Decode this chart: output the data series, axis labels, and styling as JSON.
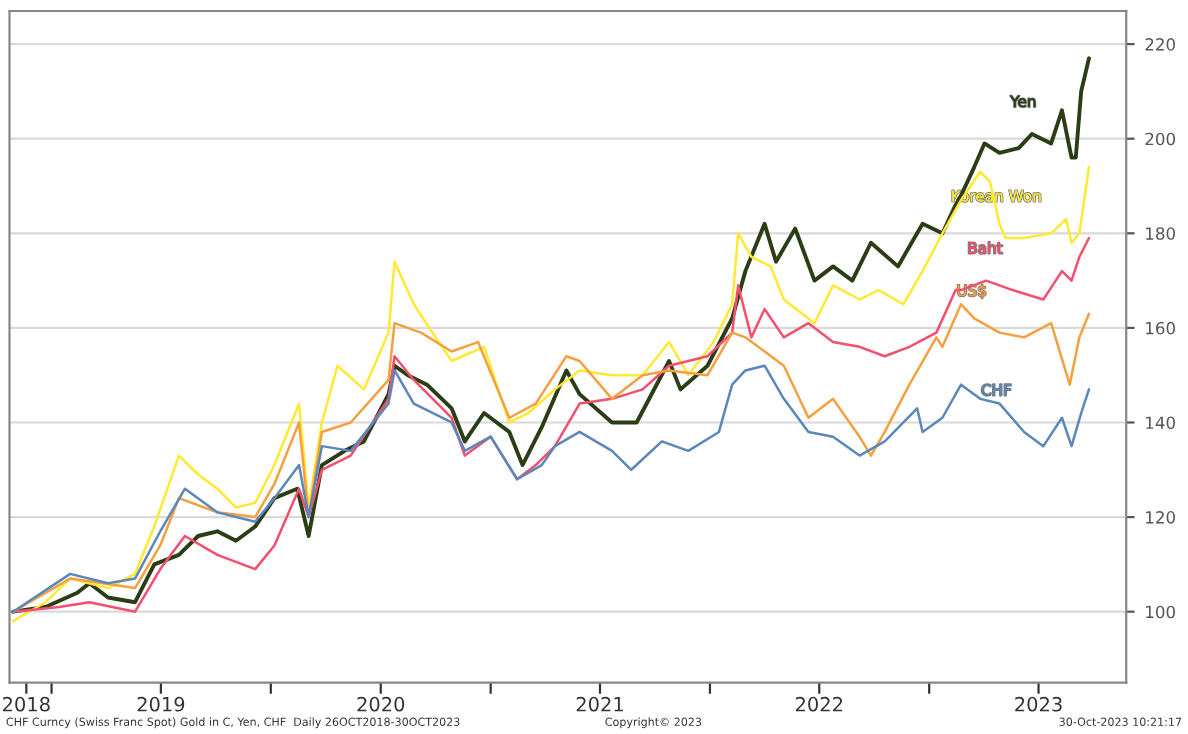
{
  "chart_data": {
    "type": "line",
    "grid": "y",
    "legend": false,
    "marker": "none",
    "line_style": "solid",
    "xlim": [
      "2018-10-23",
      "2023-11-25"
    ],
    "ylim": [
      85,
      227
    ],
    "yticks": [
      100,
      120,
      140,
      160,
      180,
      200,
      220
    ],
    "xticks": [
      {
        "value": "2018-11-20",
        "label": "2018"
      },
      {
        "value": "2019-01-01",
        "label": null
      },
      {
        "value": "2019-07-02",
        "label": "2019"
      },
      {
        "value": "2020-01-01",
        "label": null
      },
      {
        "value": "2020-07-02",
        "label": "2020"
      },
      {
        "value": "2021-01-01",
        "label": null
      },
      {
        "value": "2021-07-02",
        "label": "2021"
      },
      {
        "value": "2022-01-01",
        "label": null
      },
      {
        "value": "2022-07-02",
        "label": "2022"
      },
      {
        "value": "2023-01-01",
        "label": null
      },
      {
        "value": "2023-07-02",
        "label": "2023"
      }
    ],
    "annotations": [
      "CHF Curncy (Swiss Franc Spot) Gold in C, Yen, CHF  Daily 26OCT2018-30OCT2023",
      "Copyright© 2023",
      "30-Oct-2023 10:21:17"
    ],
    "series": [
      {
        "name": "Yen",
        "color": "#2b3d14",
        "x": [
          "2018-10-29",
          "2018-12-22",
          "2019-02-13",
          "2019-03-05",
          "2019-04-05",
          "2019-05-20",
          "2019-06-21",
          "2019-08-01",
          "2019-09-02",
          "2019-10-04",
          "2019-11-04",
          "2019-12-06",
          "2020-01-07",
          "2020-02-14",
          "2020-03-04",
          "2020-03-26",
          "2020-05-03",
          "2020-06-04",
          "2020-07-15",
          "2020-07-25",
          "2020-08-16",
          "2020-09-17",
          "2020-10-28",
          "2020-11-19",
          "2020-12-21",
          "2021-02-01",
          "2021-02-23",
          "2021-03-27",
          "2021-05-07",
          "2021-05-29",
          "2021-07-22",
          "2021-09-01",
          "2021-10-25",
          "2021-11-13",
          "2021-12-28",
          "2022-02-07",
          "2022-03-01",
          "2022-04-02",
          "2022-04-21",
          "2022-05-23",
          "2022-06-24",
          "2022-07-25",
          "2022-08-26",
          "2022-09-26",
          "2022-11-10",
          "2022-12-21",
          "2023-01-23",
          "2023-02-14",
          "2023-02-23",
          "2023-03-17",
          "2023-04-03",
          "2023-04-28",
          "2023-05-30",
          "2023-06-21",
          "2023-07-23",
          "2023-08-10",
          "2023-08-26",
          "2023-09-02",
          "2023-09-11",
          "2023-09-24"
        ],
        "values": [
          100,
          101,
          104,
          106,
          103,
          102,
          110,
          112,
          116,
          117,
          115,
          118,
          124,
          126,
          116,
          131,
          134,
          136,
          146,
          152,
          150,
          148,
          143,
          136,
          142,
          138,
          131,
          139,
          151,
          146,
          140,
          140,
          153,
          147,
          152,
          162,
          172,
          182,
          174,
          181,
          170,
          173,
          170,
          178,
          173,
          182,
          180,
          186,
          188,
          194,
          199,
          197,
          198,
          201,
          199,
          206,
          196,
          196,
          210,
          217
        ]
      },
      {
        "name": "Korean Won",
        "color": "#ffe933",
        "x": [
          "2018-10-29",
          "2018-12-22",
          "2019-02-01",
          "2019-04-05",
          "2019-05-20",
          "2019-06-21",
          "2019-08-01",
          "2019-09-02",
          "2019-10-04",
          "2019-11-04",
          "2019-12-06",
          "2020-01-07",
          "2020-02-17",
          "2020-03-04",
          "2020-03-26",
          "2020-04-21",
          "2020-06-04",
          "2020-07-15",
          "2020-07-25",
          "2020-08-26",
          "2020-09-26",
          "2020-10-28",
          "2020-12-21",
          "2021-02-01",
          "2021-03-05",
          "2021-04-18",
          "2021-05-29",
          "2021-07-22",
          "2021-09-11",
          "2021-10-25",
          "2021-11-26",
          "2022-01-07",
          "2022-02-07",
          "2022-02-17",
          "2022-03-11",
          "2022-04-12",
          "2022-05-04",
          "2022-06-24",
          "2022-07-25",
          "2022-09-07",
          "2022-10-09",
          "2022-11-19",
          "2022-12-21",
          "2023-01-23",
          "2023-02-23",
          "2023-03-27",
          "2023-04-12",
          "2023-04-28",
          "2023-05-08",
          "2023-06-08",
          "2023-07-23",
          "2023-08-17",
          "2023-08-26",
          "2023-09-08",
          "2023-09-24"
        ],
        "values": [
          98,
          102,
          107,
          105,
          108,
          118,
          133,
          129,
          126,
          122,
          123,
          131,
          144,
          122,
          140,
          152,
          147,
          159,
          174,
          165,
          159,
          153,
          156,
          140,
          142,
          147,
          151,
          150,
          150,
          157,
          150,
          157,
          165,
          180,
          175,
          173,
          166,
          161,
          169,
          166,
          168,
          165,
          172,
          180,
          187,
          193,
          191,
          182,
          179,
          179,
          180,
          183,
          178,
          180,
          194
        ]
      },
      {
        "name": "Baht",
        "color": "#f2506e",
        "x": [
          "2018-10-29",
          "2019-01-14",
          "2019-03-05",
          "2019-05-20",
          "2019-07-01",
          "2019-08-11",
          "2019-10-04",
          "2019-12-06",
          "2020-01-07",
          "2020-02-17",
          "2020-03-04",
          "2020-03-26",
          "2020-05-13",
          "2020-07-15",
          "2020-07-25",
          "2020-08-26",
          "2020-10-28",
          "2020-11-19",
          "2021-01-01",
          "2021-02-14",
          "2021-03-17",
          "2021-04-18",
          "2021-05-29",
          "2021-07-22",
          "2021-09-11",
          "2021-10-25",
          "2021-12-28",
          "2022-02-07",
          "2022-02-17",
          "2022-03-11",
          "2022-04-02",
          "2022-05-04",
          "2022-06-14",
          "2022-07-25",
          "2022-09-07",
          "2022-10-19",
          "2022-11-29",
          "2023-01-13",
          "2023-02-14",
          "2023-02-23",
          "2023-04-06",
          "2023-05-20",
          "2023-07-10",
          "2023-08-10",
          "2023-08-26",
          "2023-09-08",
          "2023-09-24"
        ],
        "values": [
          100,
          101,
          102,
          100,
          109,
          116,
          112,
          109,
          114,
          126,
          120,
          130,
          133,
          145,
          154,
          149,
          141,
          133,
          137,
          128,
          131,
          135,
          144,
          145,
          147,
          152,
          154,
          159,
          169,
          158,
          164,
          158,
          161,
          157,
          156,
          154,
          156,
          159,
          168,
          168,
          170,
          168,
          166,
          172,
          170,
          175,
          179
        ]
      },
      {
        "name": "US$",
        "color": "#f5a040",
        "x": [
          "2018-10-29",
          "2019-02-01",
          "2019-05-20",
          "2019-07-01",
          "2019-08-01",
          "2019-10-04",
          "2019-12-06",
          "2020-01-07",
          "2020-02-17",
          "2020-03-04",
          "2020-03-26",
          "2020-05-13",
          "2020-07-15",
          "2020-07-25",
          "2020-09-07",
          "2020-10-28",
          "2020-12-11",
          "2021-02-01",
          "2021-03-17",
          "2021-05-07",
          "2021-05-29",
          "2021-07-22",
          "2021-09-11",
          "2021-10-25",
          "2021-12-28",
          "2022-02-07",
          "2022-03-01",
          "2022-04-02",
          "2022-05-04",
          "2022-06-14",
          "2022-07-25",
          "2022-09-07",
          "2022-09-26",
          "2022-10-19",
          "2022-11-29",
          "2023-01-13",
          "2023-01-23",
          "2023-02-23",
          "2023-03-17",
          "2023-04-28",
          "2023-06-08",
          "2023-07-23",
          "2023-08-23",
          "2023-09-08",
          "2023-09-24"
        ],
        "values": [
          100,
          107,
          105,
          114,
          124,
          121,
          120,
          127,
          140,
          120,
          138,
          140,
          149,
          161,
          159,
          155,
          157,
          141,
          144,
          154,
          153,
          145,
          150,
          151,
          150,
          159,
          158,
          155,
          152,
          141,
          145,
          137,
          133,
          138,
          148,
          158,
          156,
          165,
          162,
          159,
          158,
          161,
          148,
          158,
          163
        ]
      },
      {
        "name": "CHF",
        "color": "#5b87bb",
        "x": [
          "2018-10-29",
          "2019-02-01",
          "2019-04-05",
          "2019-05-20",
          "2019-07-01",
          "2019-08-11",
          "2019-10-04",
          "2019-12-06",
          "2020-01-07",
          "2020-02-17",
          "2020-03-04",
          "2020-03-26",
          "2020-05-13",
          "2020-07-15",
          "2020-07-25",
          "2020-08-26",
          "2020-10-28",
          "2020-11-19",
          "2021-01-01",
          "2021-02-14",
          "2021-03-27",
          "2021-04-18",
          "2021-05-29",
          "2021-07-22",
          "2021-08-23",
          "2021-10-13",
          "2021-11-26",
          "2022-01-16",
          "2022-02-07",
          "2022-03-01",
          "2022-04-02",
          "2022-05-04",
          "2022-06-14",
          "2022-07-25",
          "2022-09-07",
          "2022-10-19",
          "2022-12-12",
          "2022-12-21",
          "2023-01-23",
          "2023-02-23",
          "2023-03-27",
          "2023-04-28",
          "2023-06-08",
          "2023-07-10",
          "2023-08-10",
          "2023-08-26",
          "2023-09-11",
          "2023-09-24"
        ],
        "values": [
          100,
          108,
          106,
          107,
          117,
          126,
          121,
          119,
          124,
          131,
          120,
          135,
          134,
          144,
          151,
          144,
          140,
          134,
          137,
          128,
          131,
          135,
          138,
          134,
          130,
          136,
          134,
          138,
          148,
          151,
          152,
          145,
          138,
          137,
          133,
          136,
          143,
          138,
          141,
          148,
          145,
          144,
          138,
          135,
          141,
          135,
          142,
          147
        ]
      }
    ]
  }
}
